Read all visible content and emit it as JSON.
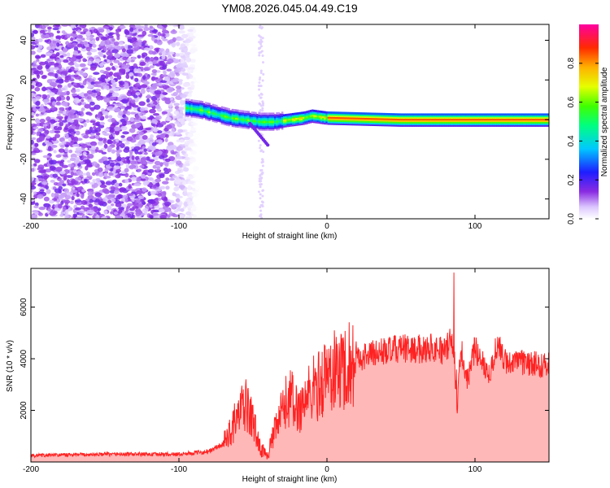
{
  "title": "YM08.2026.045.04.49.C19",
  "chart_data": [
    {
      "type": "heatmap",
      "xlabel": "Height of straight line (km)",
      "ylabel": "Frequency (Hz)",
      "xlim": [
        -200,
        150
      ],
      "ylim": [
        -50,
        48
      ],
      "xticks": [
        -200,
        -100,
        0,
        100
      ],
      "xtick_labels": [
        "-200",
        "-100",
        "0",
        "100"
      ],
      "yticks": [
        -40,
        -20,
        0,
        20,
        40
      ],
      "ytick_labels": [
        "-40",
        "-20",
        "0",
        "20",
        "40"
      ],
      "colorbar": {
        "label": "Normalized spectral amplitude",
        "range": [
          0,
          1
        ],
        "ticks": [
          0.0,
          0.2,
          0.4,
          0.6,
          0.8
        ],
        "tick_labels": [
          "0.0",
          "0.2",
          "0.4",
          "0.6",
          "0.8"
        ]
      },
      "ridge": [
        {
          "x": -95,
          "y": 6
        },
        {
          "x": -85,
          "y": 5
        },
        {
          "x": -75,
          "y": 3
        },
        {
          "x": -65,
          "y": 1
        },
        {
          "x": -55,
          "y": 0
        },
        {
          "x": -45,
          "y": -1
        },
        {
          "x": -35,
          "y": -1
        },
        {
          "x": -25,
          "y": 0
        },
        {
          "x": -15,
          "y": 1
        },
        {
          "x": -10,
          "y": 2
        },
        {
          "x": 0,
          "y": 1
        },
        {
          "x": 50,
          "y": 0
        },
        {
          "x": 100,
          "y": 0
        },
        {
          "x": 150,
          "y": 0
        }
      ]
    },
    {
      "type": "line",
      "xlabel": "Height of straight line (km)",
      "ylabel": "SNR (10 * v/v)",
      "xlim": [
        -200,
        150
      ],
      "ylim": [
        0,
        7500
      ],
      "xticks": [
        -200,
        -100,
        0,
        100
      ],
      "xtick_labels": [
        "-200",
        "-100",
        "0",
        "100"
      ],
      "yticks": [
        2000,
        4000,
        6000
      ],
      "ytick_labels": [
        "2000",
        "4000",
        "6000"
      ],
      "color": "#ff2222",
      "x": [
        -200,
        -150,
        -100,
        -80,
        -70,
        -60,
        -55,
        -50,
        -45,
        -40,
        -35,
        -30,
        -25,
        -20,
        -15,
        -10,
        -5,
        0,
        10,
        20,
        30,
        40,
        50,
        60,
        70,
        80,
        85,
        88,
        90,
        95,
        100,
        105,
        110,
        115,
        120,
        130,
        140,
        150
      ],
      "y": [
        250,
        300,
        300,
        400,
        700,
        1800,
        2200,
        1600,
        500,
        300,
        1200,
        2000,
        2600,
        2000,
        2400,
        2800,
        3000,
        3400,
        3600,
        4000,
        4200,
        4300,
        4400,
        4350,
        4450,
        4300,
        4800,
        2000,
        4200,
        3200,
        4400,
        3900,
        3400,
        4600,
        3900,
        3850,
        3800,
        3750
      ]
    }
  ]
}
